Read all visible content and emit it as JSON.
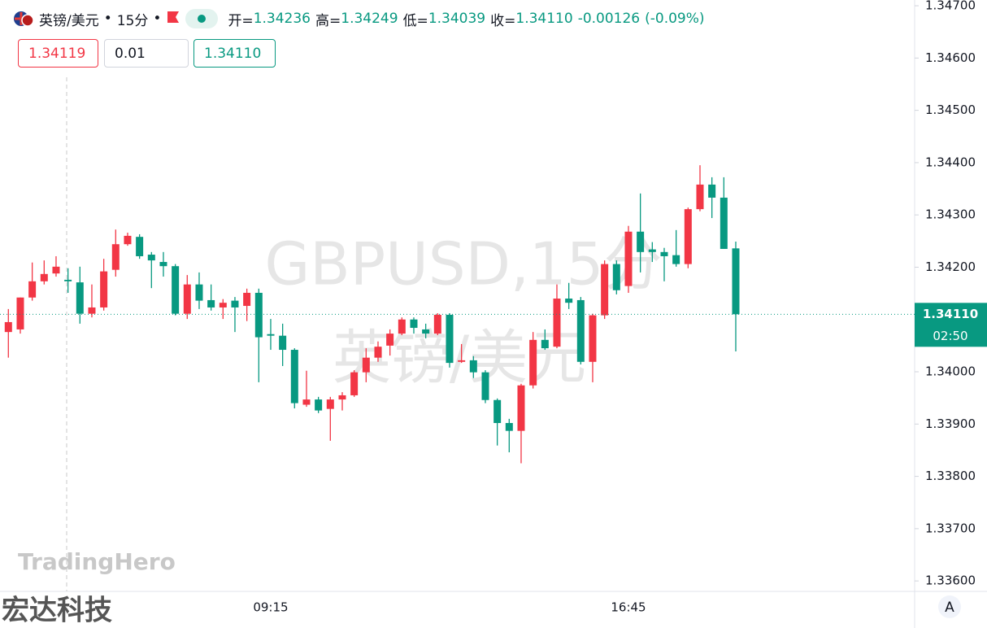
{
  "header": {
    "symbol": "英镑/美元",
    "interval": "15分",
    "ohlc": [
      {
        "label": "开=",
        "value": "1.34236"
      },
      {
        "label": "高=",
        "value": "1.34249"
      },
      {
        "label": "低=",
        "value": "1.34039"
      },
      {
        "label": "收=",
        "value": "1.34110"
      }
    ],
    "change": "-0.00126",
    "change_pct": "(-0.09%)"
  },
  "trade": {
    "sell": "1.34119",
    "qty": "0.01",
    "buy": "1.34110"
  },
  "watermark": {
    "line1": "GBPUSD,15分",
    "line2": "英镑/美元"
  },
  "logo": "TradingHero",
  "footer_brand": "宏达科技",
  "scale_button": "A",
  "chart_data": {
    "type": "candlestick",
    "up_color": "#f23645",
    "down_color": "#089981",
    "categories": [
      null,
      null,
      null,
      null,
      null,
      null,
      null,
      null,
      null,
      null,
      null,
      null,
      null,
      null,
      null,
      null,
      null,
      null,
      null,
      null,
      null,
      null,
      "09:15",
      null,
      null,
      null,
      null,
      null,
      null,
      null,
      null,
      null,
      null,
      null,
      null,
      null,
      null,
      null,
      null,
      null,
      null,
      null,
      null,
      null,
      null,
      null,
      null,
      null,
      null,
      null,
      null,
      null,
      "16:45",
      null,
      null,
      null,
      null,
      null,
      null,
      null,
      null,
      null
    ],
    "open": [
      1.34076,
      1.34081,
      1.34142,
      1.34173,
      1.34188,
      1.34176,
      1.34171,
      1.34111,
      1.34123,
      1.34195,
      1.34244,
      1.34258,
      1.34224,
      1.3421,
      1.34202,
      1.34111,
      1.34167,
      1.34137,
      1.34123,
      1.34136,
      1.34126,
      1.34151,
      1.34072,
      1.34069,
      1.34042,
      1.33937,
      1.33947,
      1.33929,
      1.33947,
      1.33955,
      1.33999,
      1.34027,
      1.3405,
      1.34073,
      1.341,
      1.34081,
      1.34073,
      1.34109,
      1.34019,
      1.34022,
      1.33999,
      1.33946,
      1.33902,
      1.33887,
      1.33974,
      1.34061,
      1.34048,
      1.3414,
      1.34137,
      1.34019,
      1.34108,
      1.34206,
      1.34164,
      1.34268,
      1.34234,
      1.34229,
      1.34223,
      1.34206,
      1.34311,
      1.34358,
      1.34333,
      1.34236
    ],
    "high": [
      1.3412,
      1.34142,
      1.34209,
      1.34213,
      1.34221,
      1.34198,
      1.34201,
      1.34167,
      1.34216,
      1.34272,
      1.34266,
      1.34263,
      1.34229,
      1.34229,
      1.34206,
      1.34185,
      1.3419,
      1.34167,
      1.34139,
      1.34143,
      1.34159,
      1.34159,
      1.34101,
      1.34092,
      1.34045,
      1.34002,
      1.33952,
      1.33952,
      1.33961,
      1.34003,
      1.34045,
      1.34058,
      1.34081,
      1.34104,
      1.34104,
      1.34092,
      1.34112,
      1.34112,
      1.34053,
      1.3403,
      1.34003,
      1.33949,
      1.3391,
      1.33977,
      1.34076,
      1.34081,
      1.34167,
      1.3417,
      1.34143,
      1.34111,
      1.34213,
      1.34213,
      1.34279,
      1.34341,
      1.34248,
      1.34237,
      1.34271,
      1.34314,
      1.34395,
      1.34372,
      1.34372,
      1.34249
    ],
    "low": [
      1.34027,
      1.34073,
      1.34136,
      1.34167,
      1.34182,
      1.34151,
      1.34092,
      1.34104,
      1.34117,
      1.34182,
      1.34241,
      1.34216,
      1.3416,
      1.34182,
      1.34108,
      1.34101,
      1.3412,
      1.34117,
      1.34101,
      1.34076,
      1.34097,
      1.3398,
      1.34042,
      1.34011,
      1.3393,
      1.33933,
      1.33921,
      1.33868,
      1.33926,
      1.33952,
      1.3398,
      1.34019,
      1.34031,
      1.3407,
      1.34073,
      1.34064,
      1.3407,
      1.34008,
      1.34017,
      1.33988,
      1.3394,
      1.33859,
      1.33846,
      1.33825,
      1.33968,
      1.34042,
      1.34045,
      1.3412,
      1.34014,
      1.3398,
      1.34101,
      1.34148,
      1.34151,
      1.3419,
      1.3421,
      1.34173,
      1.34201,
      1.34198,
      1.34307,
      1.34294,
      1.34235,
      1.34039
    ],
    "close": [
      1.34095,
      1.34142,
      1.34173,
      1.34187,
      1.34201,
      1.34173,
      1.34111,
      1.34123,
      1.34192,
      1.34244,
      1.3426,
      1.34221,
      1.34213,
      1.34202,
      1.34111,
      1.34167,
      1.34136,
      1.34123,
      1.34132,
      1.34123,
      1.34151,
      1.34066,
      1.34069,
      1.34042,
      1.3394,
      1.33947,
      1.33926,
      1.33947,
      1.33955,
      1.33999,
      1.34027,
      1.34048,
      1.34073,
      1.341,
      1.34084,
      1.34073,
      1.34109,
      1.34017,
      1.34022,
      1.33999,
      1.33946,
      1.33902,
      1.33887,
      1.33974,
      1.34061,
      1.34045,
      1.3414,
      1.34132,
      1.34019,
      1.34108,
      1.34206,
      1.34156,
      1.34268,
      1.34229,
      1.34229,
      1.34221,
      1.34206,
      1.34311,
      1.34358,
      1.34333,
      1.34235,
      1.3411
    ],
    "ylim": [
      1.3358,
      1.34711
    ],
    "yticks": [
      {
        "value": 1.347,
        "label": "1.34700"
      },
      {
        "value": 1.346,
        "label": "1.34600"
      },
      {
        "value": 1.345,
        "label": "1.34500"
      },
      {
        "value": 1.344,
        "label": "1.34400"
      },
      {
        "value": 1.343,
        "label": "1.34300"
      },
      {
        "value": 1.342,
        "label": "1.34200"
      },
      {
        "value": 1.34,
        "label": "1.34000"
      },
      {
        "value": 1.339,
        "label": "1.33900"
      },
      {
        "value": 1.338,
        "label": "1.33800"
      },
      {
        "value": 1.337,
        "label": "1.33700"
      },
      {
        "value": 1.336,
        "label": "1.33600"
      }
    ],
    "last_price": {
      "value": 1.3411,
      "label": "1.34110"
    },
    "countdown": "02:50",
    "grid": false
  }
}
